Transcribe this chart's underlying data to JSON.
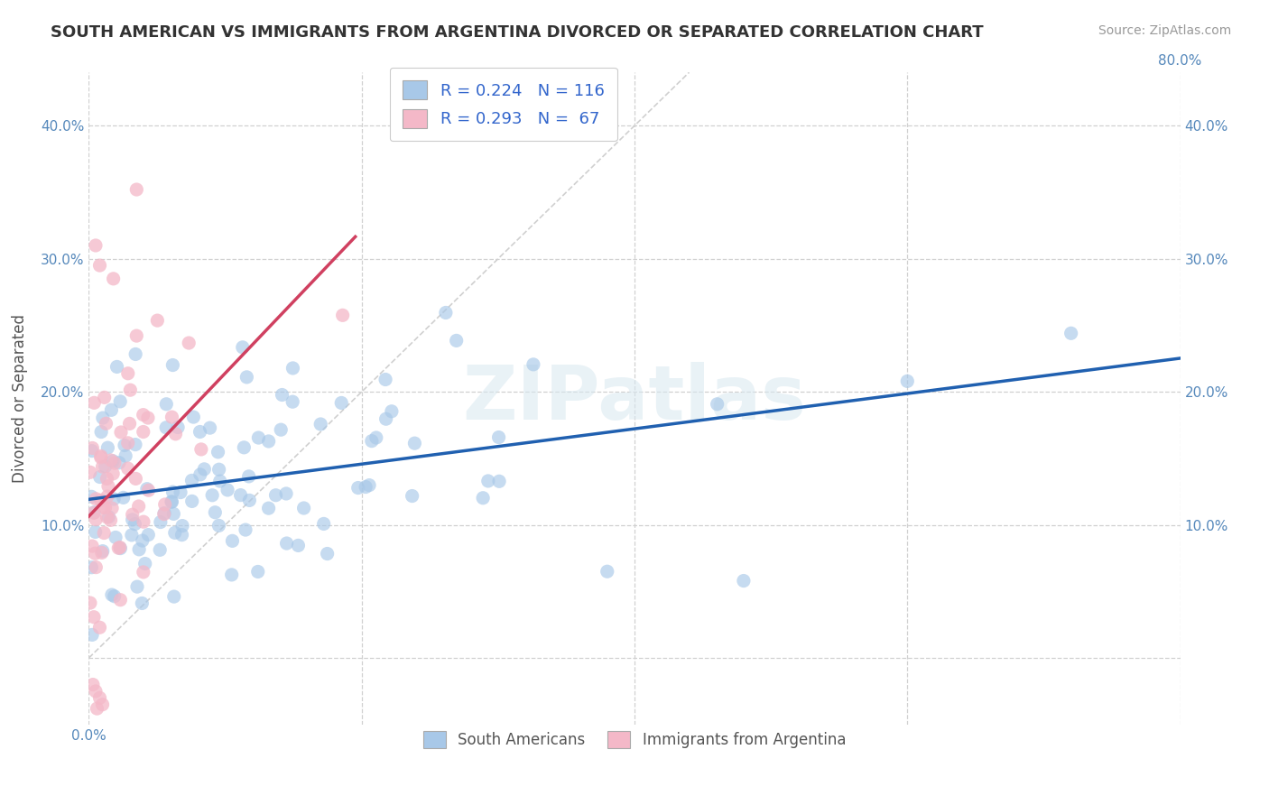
{
  "title": "SOUTH AMERICAN VS IMMIGRANTS FROM ARGENTINA DIVORCED OR SEPARATED CORRELATION CHART",
  "source_text": "Source: ZipAtlas.com",
  "ylabel": "Divorced or Separated",
  "watermark": "ZIPatlas",
  "xlim": [
    0.0,
    0.8
  ],
  "ylim": [
    -0.05,
    0.44
  ],
  "xticks": [
    0.0,
    0.2,
    0.4,
    0.6,
    0.8
  ],
  "yticks": [
    0.0,
    0.1,
    0.2,
    0.3,
    0.4
  ],
  "xtick_labels_left": [
    "0.0%",
    "",
    "",
    "",
    ""
  ],
  "xtick_labels_right": [
    "",
    "",
    "",
    "",
    "80.0%"
  ],
  "ytick_labels_left": [
    "",
    "10.0%",
    "20.0%",
    "30.0%",
    "40.0%"
  ],
  "ytick_labels_right": [
    "",
    "10.0%",
    "20.0%",
    "30.0%",
    "40.0%"
  ],
  "blue_color": "#a8c8e8",
  "pink_color": "#f4b8c8",
  "blue_line_color": "#2060b0",
  "pink_line_color": "#d04060",
  "ref_line_color": "#d0d0d0",
  "grid_color": "#d0d0d0",
  "legend_R1": "R = 0.224",
  "legend_N1": "N = 116",
  "legend_R2": "R = 0.293",
  "legend_N2": "N =  67",
  "blue_R": 0.224,
  "blue_N": 116,
  "pink_R": 0.293,
  "pink_N": 67,
  "legend_text_color": "#3366cc",
  "tick_color": "#5588bb",
  "title_color": "#333333",
  "source_color": "#999999"
}
